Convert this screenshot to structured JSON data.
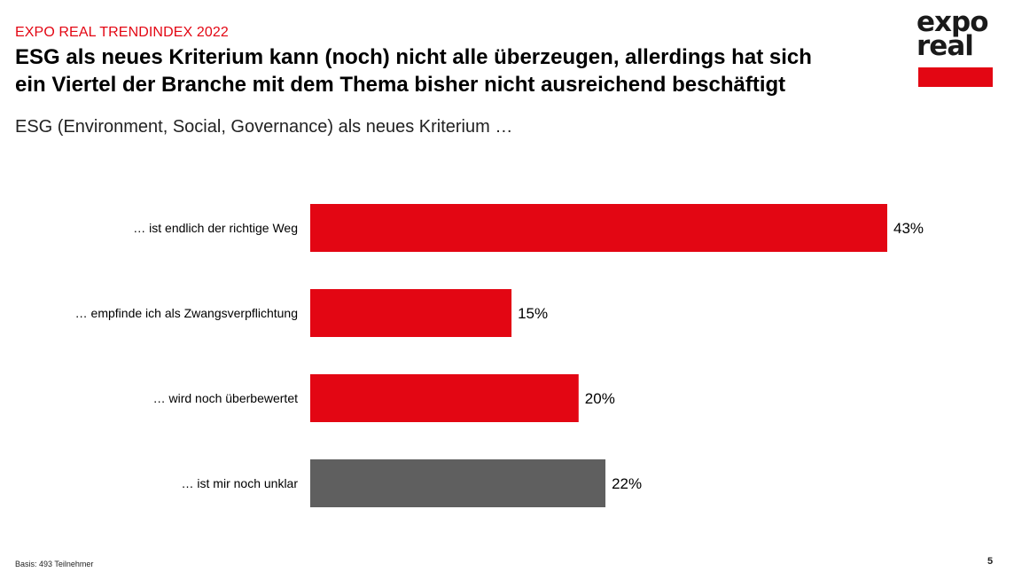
{
  "header": {
    "kicker": "EXPO REAL TRENDINDEX 2022",
    "headline_line1": "ESG als neues Kriterium kann (noch) nicht alle überzeugen, allerdings hat sich",
    "headline_line2": "ein Viertel der Branche mit dem Thema bisher nicht ausreichend beschäftigt",
    "subtitle": "ESG (Environment, Social, Governance) als neues Kriterium …"
  },
  "logo": {
    "line1": "expo",
    "line2": "real",
    "accent_color": "#e30613"
  },
  "chart_data": {
    "type": "bar",
    "orientation": "horizontal",
    "categories": [
      "… ist endlich der richtige Weg",
      "… empfinde ich als Zwangsverpflichtung",
      "… wird noch überbewertet",
      "… ist mir noch unklar"
    ],
    "values": [
      43,
      15,
      20,
      22
    ],
    "value_labels": [
      "43%",
      "15%",
      "20%",
      "22%"
    ],
    "unit": "%",
    "bar_colors": [
      "#e30613",
      "#e30613",
      "#e30613",
      "#5f5f5f"
    ],
    "xlim": [
      0,
      43
    ],
    "grid": false,
    "legend": "none"
  },
  "footer": {
    "basis": "Basis: 493 Teilnehmer",
    "page_number": "5"
  }
}
